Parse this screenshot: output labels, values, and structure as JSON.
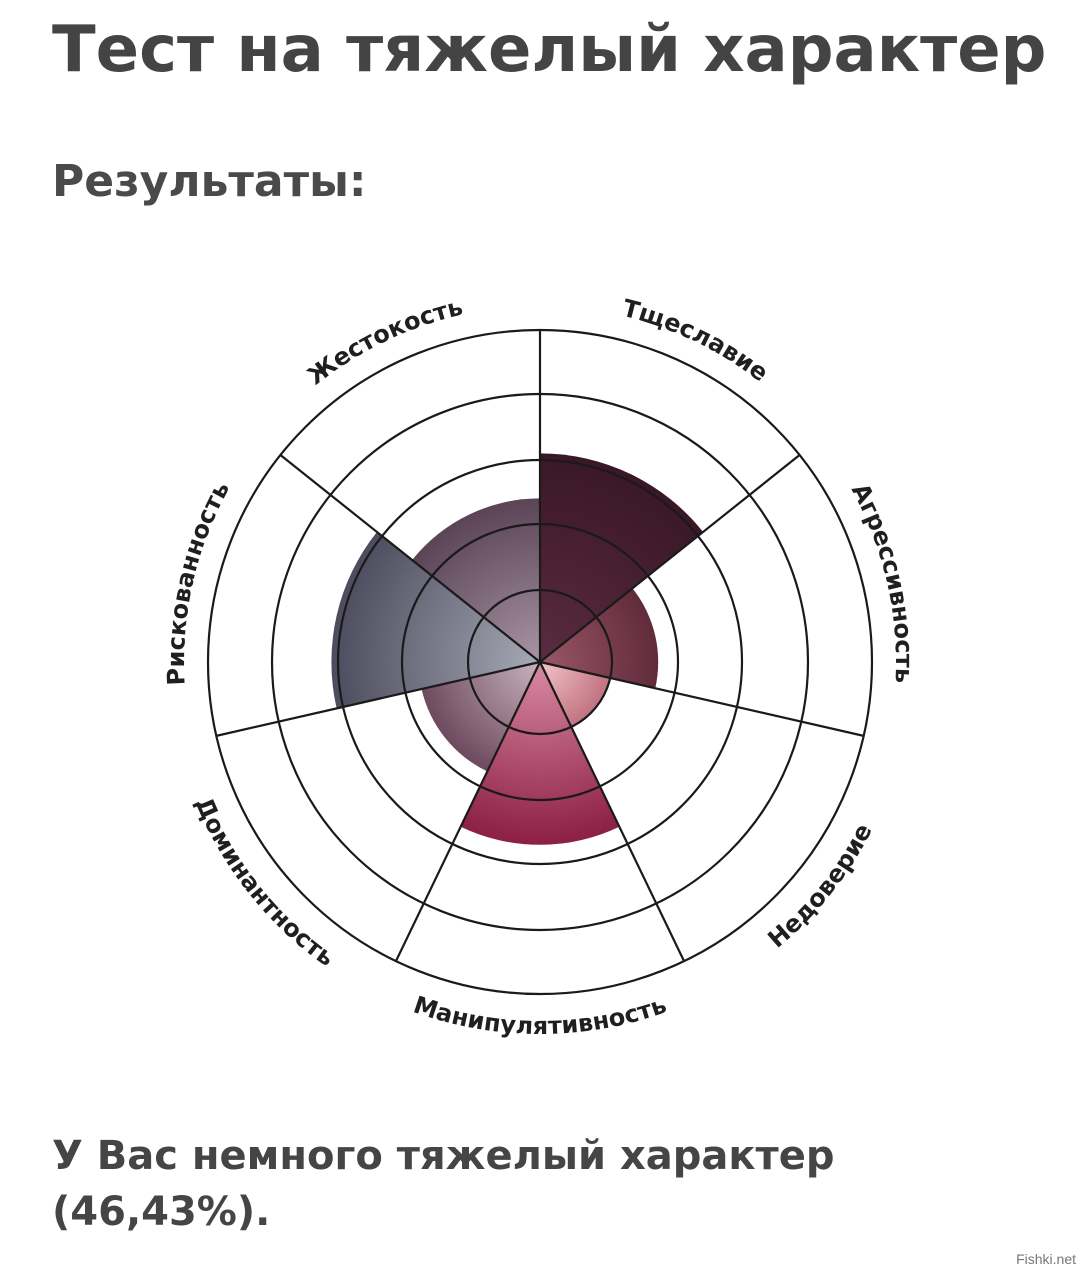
{
  "page": {
    "title": "Тест на тяжелый характер",
    "subtitle": "Результаты:",
    "result_line1": "У Вас немного тяжелый характер",
    "result_line2": "(46,43%).",
    "watermark": "Fishki.net"
  },
  "chart_data": {
    "type": "polar-area",
    "title": "",
    "max": 5,
    "rings": [
      1,
      2,
      3,
      4,
      5
    ],
    "grid": true,
    "categories": [
      "Тщеславие",
      "Агрессивность",
      "Недоверие",
      "Манипулятивность",
      "Доминантность",
      "Рискованность",
      "Жестокость"
    ],
    "values": [
      3.1,
      1.7,
      1.0,
      2.7,
      1.75,
      3.1,
      2.4
    ],
    "colors": [
      [
        "#5a2c40",
        "#3a1727"
      ],
      [
        "#9b5767",
        "#602b3b"
      ],
      [
        "#f3c4c9",
        "#c07380"
      ],
      [
        "#d98aa5",
        "#8c1f44"
      ],
      [
        "#c9b3c0",
        "#6d4a5e"
      ],
      [
        "#a7a9b6",
        "#4d4c5e"
      ],
      [
        "#a995a6",
        "#5a4456"
      ]
    ]
  }
}
